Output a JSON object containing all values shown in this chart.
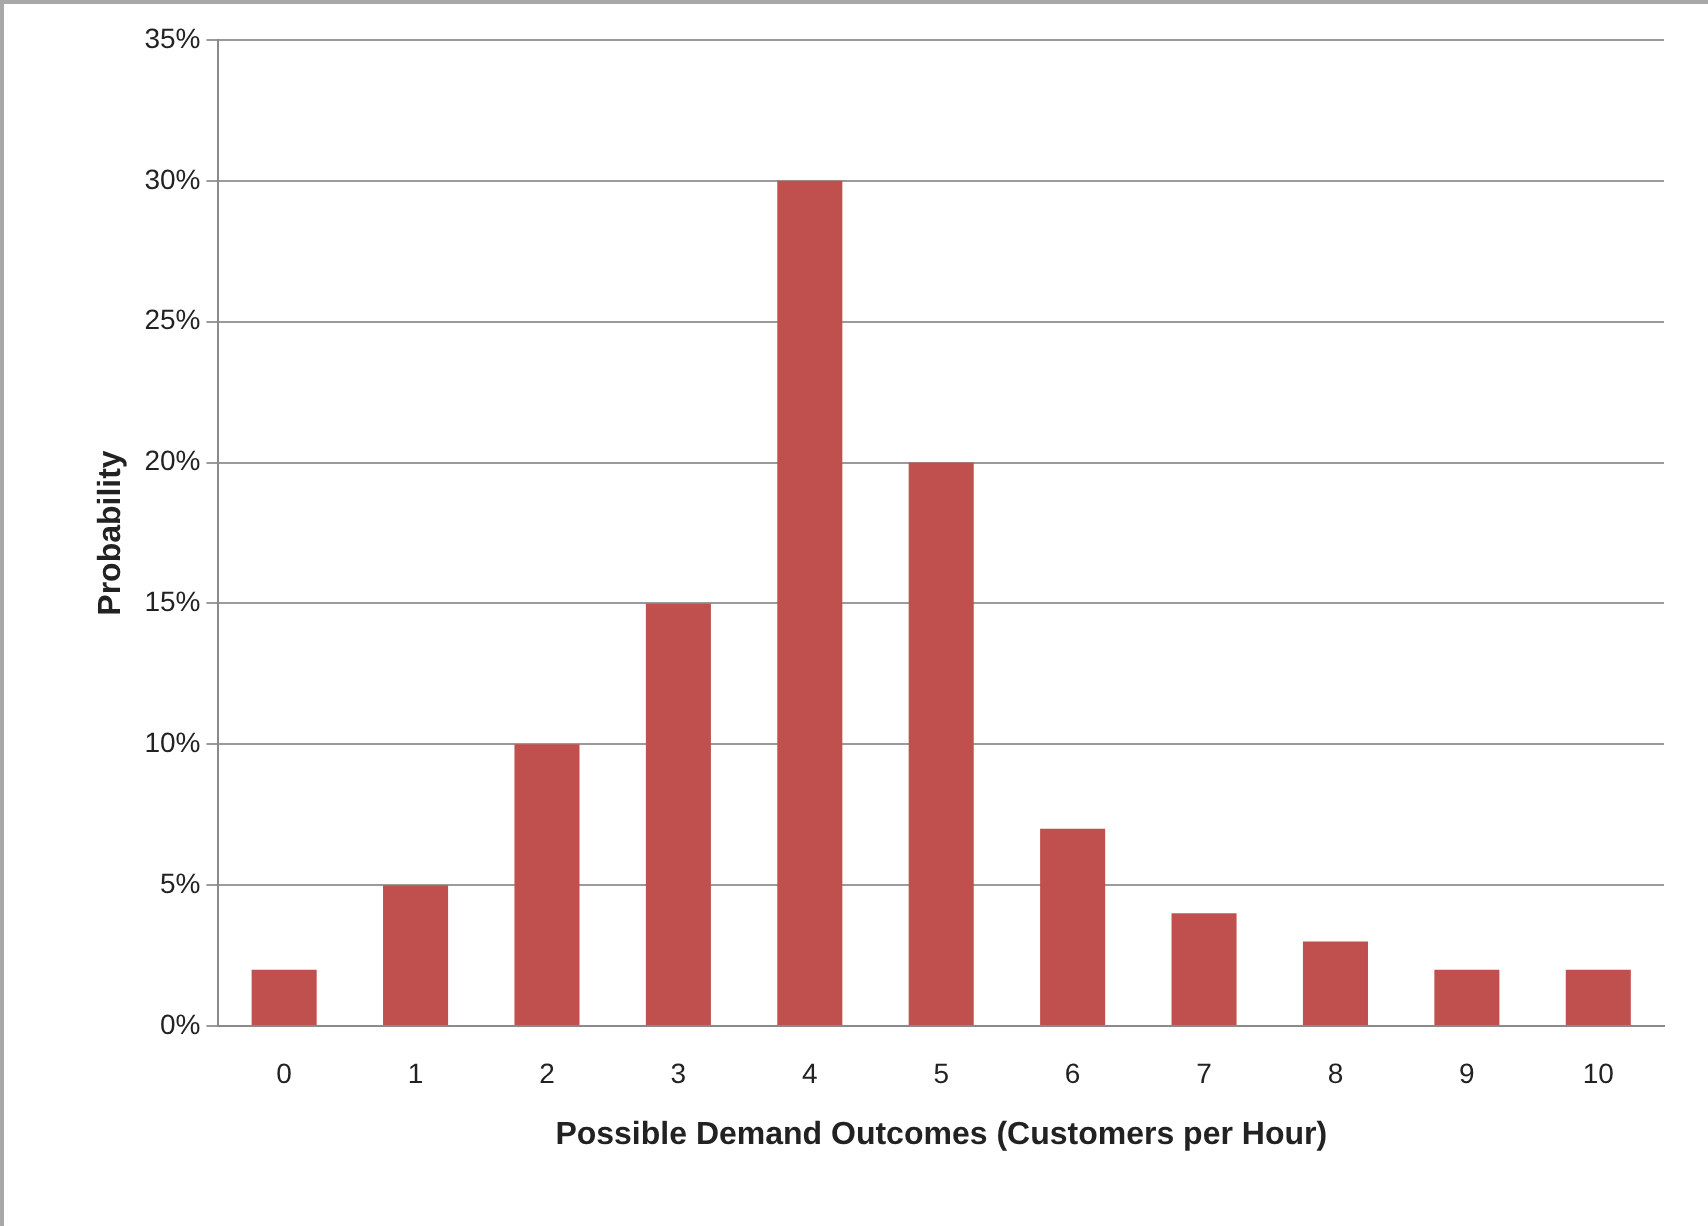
{
  "chart_data": {
    "type": "bar",
    "xlabel": "Possible Demand Outcomes (Customers per Hour)",
    "ylabel": "Probability",
    "categories": [
      "0",
      "1",
      "2",
      "3",
      "4",
      "5",
      "6",
      "7",
      "8",
      "9",
      "10"
    ],
    "values": [
      2,
      5,
      10,
      15,
      30,
      20,
      7,
      4,
      3,
      2,
      2
    ],
    "color": "#c0504d",
    "ylim": [
      0,
      35
    ],
    "yticks": [
      {
        "value": 0,
        "label": "0%"
      },
      {
        "value": 5,
        "label": "5%"
      },
      {
        "value": 10,
        "label": "10%"
      },
      {
        "value": 15,
        "label": "15%"
      },
      {
        "value": 20,
        "label": "20%"
      },
      {
        "value": 25,
        "label": "25%"
      },
      {
        "value": 30,
        "label": "30%"
      },
      {
        "value": 35,
        "label": "35%"
      }
    ],
    "grid": "y",
    "legend": false
  }
}
